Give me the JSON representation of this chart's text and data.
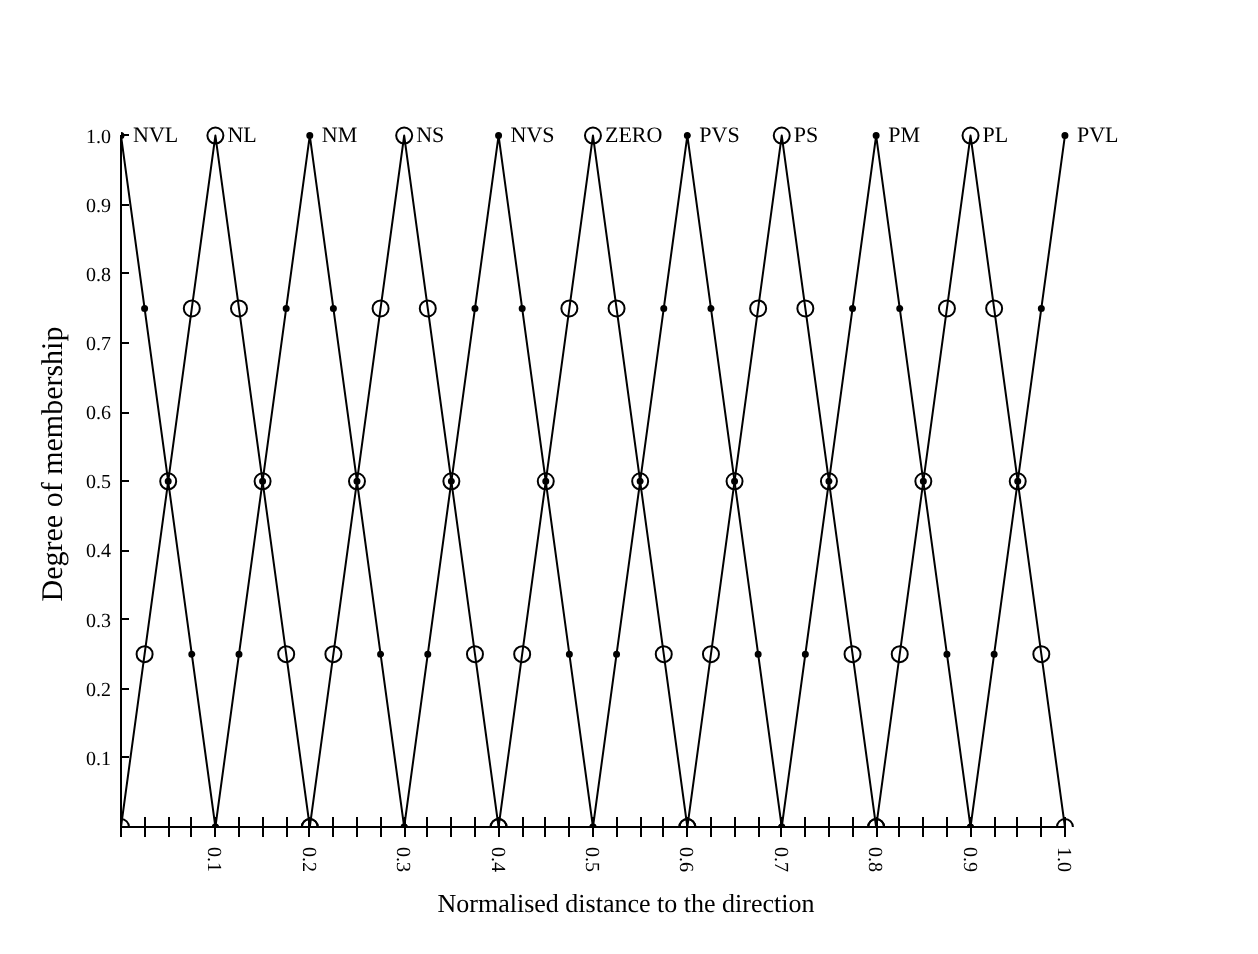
{
  "chart_data": {
    "type": "line",
    "xlabel": "Normalised distance to the direction",
    "ylabel": "Degree of membership",
    "xlim": [
      0,
      1.0
    ],
    "ylim": [
      0,
      1.0
    ],
    "xticks": [
      {
        "value": 0,
        "label": null
      },
      {
        "value": 0.025,
        "label": null
      },
      {
        "value": 0.05,
        "label": null
      },
      {
        "value": 0.075,
        "label": null
      },
      0.1,
      {
        "value": 0.125,
        "label": null
      },
      {
        "value": 0.15,
        "label": null
      },
      {
        "value": 0.175,
        "label": null
      },
      0.2,
      {
        "value": 0.225,
        "label": null
      },
      {
        "value": 0.25,
        "label": null
      },
      {
        "value": 0.275,
        "label": null
      },
      0.3,
      {
        "value": 0.325,
        "label": null
      },
      {
        "value": 0.35,
        "label": null
      },
      {
        "value": 0.375,
        "label": null
      },
      0.4,
      {
        "value": 0.425,
        "label": null
      },
      {
        "value": 0.45,
        "label": null
      },
      {
        "value": 0.475,
        "label": null
      },
      0.5,
      {
        "value": 0.525,
        "label": null
      },
      {
        "value": 0.55,
        "label": null
      },
      {
        "value": 0.575,
        "label": null
      },
      0.6,
      {
        "value": 0.625,
        "label": null
      },
      {
        "value": 0.65,
        "label": null
      },
      {
        "value": 0.675,
        "label": null
      },
      0.7,
      {
        "value": 0.725,
        "label": null
      },
      {
        "value": 0.75,
        "label": null
      },
      {
        "value": 0.775,
        "label": null
      },
      0.8,
      {
        "value": 0.825,
        "label": null
      },
      {
        "value": 0.85,
        "label": null
      },
      {
        "value": 0.875,
        "label": null
      },
      0.9,
      {
        "value": 0.925,
        "label": null
      },
      {
        "value": 0.95,
        "label": null
      },
      {
        "value": 0.975,
        "label": null
      },
      "1.0"
    ],
    "yticks": [
      {
        "value": 0,
        "label": null
      },
      0.1,
      0.2,
      0.3,
      0.4,
      0.5,
      0.6,
      0.7,
      0.8,
      0.9,
      {
        "value": 1.0,
        "label": "1.0"
      }
    ],
    "grid": false,
    "legend": false,
    "line_style": "solid",
    "series": [
      {
        "name": "NVL",
        "color": "#000000",
        "marker": "dot",
        "x": [
          0,
          0.025,
          0.05,
          0.075,
          0.1
        ],
        "values": [
          1.0,
          0.75,
          0.5,
          0.25,
          0
        ]
      },
      {
        "name": "NL",
        "color": "#000000",
        "marker": "circle",
        "x": [
          0,
          0.025,
          0.05,
          0.075,
          0.1,
          0.125,
          0.15,
          0.175,
          0.2
        ],
        "values": [
          0,
          0.25,
          0.5,
          0.75,
          1.0,
          0.75,
          0.5,
          0.25,
          0
        ]
      },
      {
        "name": "NM",
        "color": "#000000",
        "marker": "dot",
        "x": [
          0.1,
          0.125,
          0.15,
          0.175,
          0.2,
          0.225,
          0.25,
          0.275,
          0.3
        ],
        "values": [
          0,
          0.25,
          0.5,
          0.75,
          1.0,
          0.75,
          0.5,
          0.25,
          0
        ]
      },
      {
        "name": "NS",
        "color": "#000000",
        "marker": "circle",
        "x": [
          0.2,
          0.225,
          0.25,
          0.275,
          0.3,
          0.325,
          0.35,
          0.375,
          0.4
        ],
        "values": [
          0,
          0.25,
          0.5,
          0.75,
          1.0,
          0.75,
          0.5,
          0.25,
          0
        ]
      },
      {
        "name": "NVS",
        "color": "#000000",
        "marker": "dot",
        "x": [
          0.3,
          0.325,
          0.35,
          0.375,
          0.4,
          0.425,
          0.45,
          0.475,
          0.5
        ],
        "values": [
          0,
          0.25,
          0.5,
          0.75,
          1.0,
          0.75,
          0.5,
          0.25,
          0
        ]
      },
      {
        "name": "ZERO",
        "color": "#000000",
        "marker": "circle",
        "x": [
          0.4,
          0.425,
          0.45,
          0.475,
          0.5,
          0.525,
          0.55,
          0.575,
          0.6
        ],
        "values": [
          0,
          0.25,
          0.5,
          0.75,
          1.0,
          0.75,
          0.5,
          0.25,
          0
        ]
      },
      {
        "name": "PVS",
        "color": "#000000",
        "marker": "dot",
        "x": [
          0.5,
          0.525,
          0.55,
          0.575,
          0.6,
          0.625,
          0.65,
          0.675,
          0.7
        ],
        "values": [
          0,
          0.25,
          0.5,
          0.75,
          1.0,
          0.75,
          0.5,
          0.25,
          0
        ]
      },
      {
        "name": "PS",
        "color": "#000000",
        "marker": "circle",
        "x": [
          0.6,
          0.625,
          0.65,
          0.675,
          0.7,
          0.725,
          0.75,
          0.775,
          0.8
        ],
        "values": [
          0,
          0.25,
          0.5,
          0.75,
          1.0,
          0.75,
          0.5,
          0.25,
          0
        ]
      },
      {
        "name": "PM",
        "color": "#000000",
        "marker": "dot",
        "x": [
          0.7,
          0.725,
          0.75,
          0.775,
          0.8,
          0.825,
          0.85,
          0.875,
          0.9
        ],
        "values": [
          0,
          0.25,
          0.5,
          0.75,
          1.0,
          0.75,
          0.5,
          0.25,
          0
        ]
      },
      {
        "name": "PL",
        "color": "#000000",
        "marker": "circle",
        "x": [
          0.8,
          0.825,
          0.85,
          0.875,
          0.9,
          0.925,
          0.95,
          0.975,
          1.0
        ],
        "values": [
          0,
          0.25,
          0.5,
          0.75,
          1.0,
          0.75,
          0.5,
          0.25,
          0
        ]
      },
      {
        "name": "PVL",
        "color": "#000000",
        "marker": "dot",
        "x": [
          0.9,
          0.925,
          0.95,
          0.975,
          1.0
        ],
        "values": [
          0,
          0.25,
          0.5,
          0.75,
          1.0
        ]
      }
    ]
  }
}
